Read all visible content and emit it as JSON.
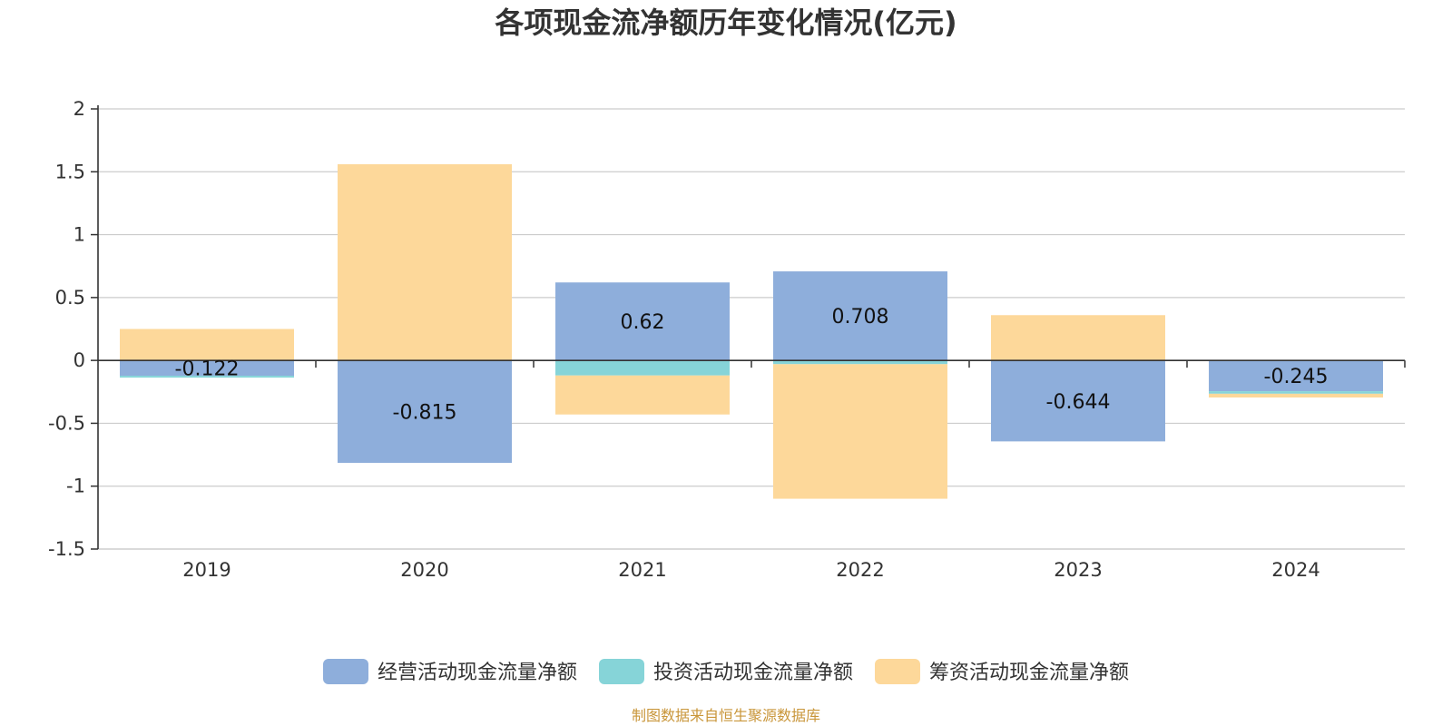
{
  "chart_data": {
    "type": "bar",
    "stacking": "diverging-stacked",
    "title": "各项现金流净额历年变化情况(亿元)",
    "categories": [
      "2019",
      "2020",
      "2021",
      "2022",
      "2023",
      "2024"
    ],
    "series": [
      {
        "name": "经营活动现金流量净额",
        "color": "#8eaedb",
        "values": [
          -0.122,
          -0.815,
          0.62,
          0.708,
          -0.644,
          -0.245
        ],
        "labels": [
          "-0.122",
          "-0.815",
          "0.62",
          "0.708",
          "-0.644",
          "-0.245"
        ]
      },
      {
        "name": "投资活动现金流量净额",
        "color": "#86d4d8",
        "values": [
          -0.015,
          0.0,
          -0.12,
          -0.03,
          0.0,
          -0.02
        ]
      },
      {
        "name": "筹资活动现金流量净额",
        "color": "#fdd89a",
        "values": [
          0.25,
          1.56,
          -0.31,
          -1.07,
          0.36,
          -0.03
        ]
      }
    ],
    "ylim": [
      -1.5,
      2
    ],
    "yticks": [
      2,
      1.5,
      1,
      0.5,
      0,
      -0.5,
      -1,
      -1.5
    ],
    "ytick_labels": [
      "2",
      "1.5",
      "1",
      "0.5",
      "0",
      "-0.5",
      "-1",
      "-1.5"
    ],
    "grid": true,
    "legend_position": "bottom"
  },
  "source_note": "制图数据来自恒生聚源数据库"
}
